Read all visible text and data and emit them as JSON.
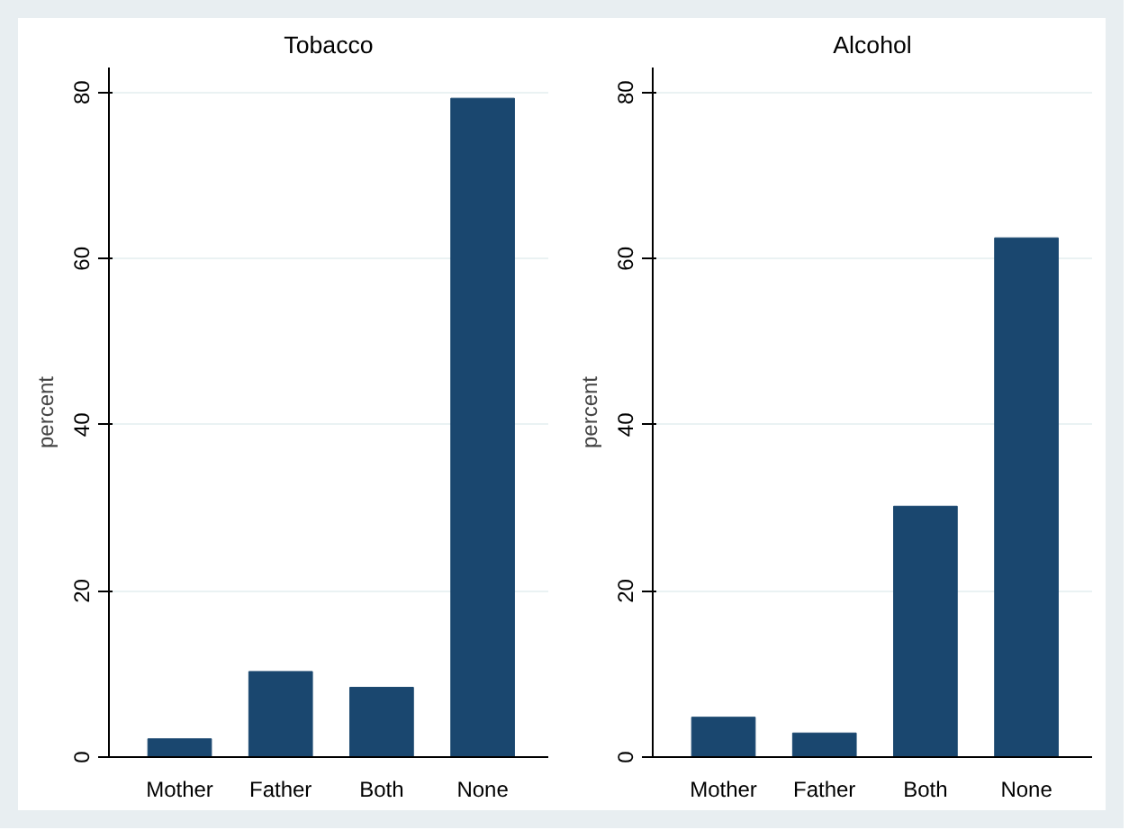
{
  "chart_data": [
    {
      "type": "bar",
      "title": "Tobacco",
      "ylabel": "percent",
      "categories": [
        "Mother",
        "Father",
        "Both",
        "None"
      ],
      "values": [
        2.2,
        10.3,
        8.4,
        79.3
      ],
      "color": "#1a476f",
      "ylim": [
        0,
        83
      ],
      "yticks": [
        0,
        20,
        40,
        60,
        80
      ],
      "grid": "y"
    },
    {
      "type": "bar",
      "title": "Alcohol",
      "ylabel": "percent",
      "categories": [
        "Mother",
        "Father",
        "Both",
        "None"
      ],
      "values": [
        4.8,
        2.9,
        30.2,
        62.5
      ],
      "color": "#1a476f",
      "ylim": [
        0,
        83
      ],
      "yticks": [
        0,
        20,
        40,
        60,
        80
      ],
      "grid": "y"
    }
  ]
}
